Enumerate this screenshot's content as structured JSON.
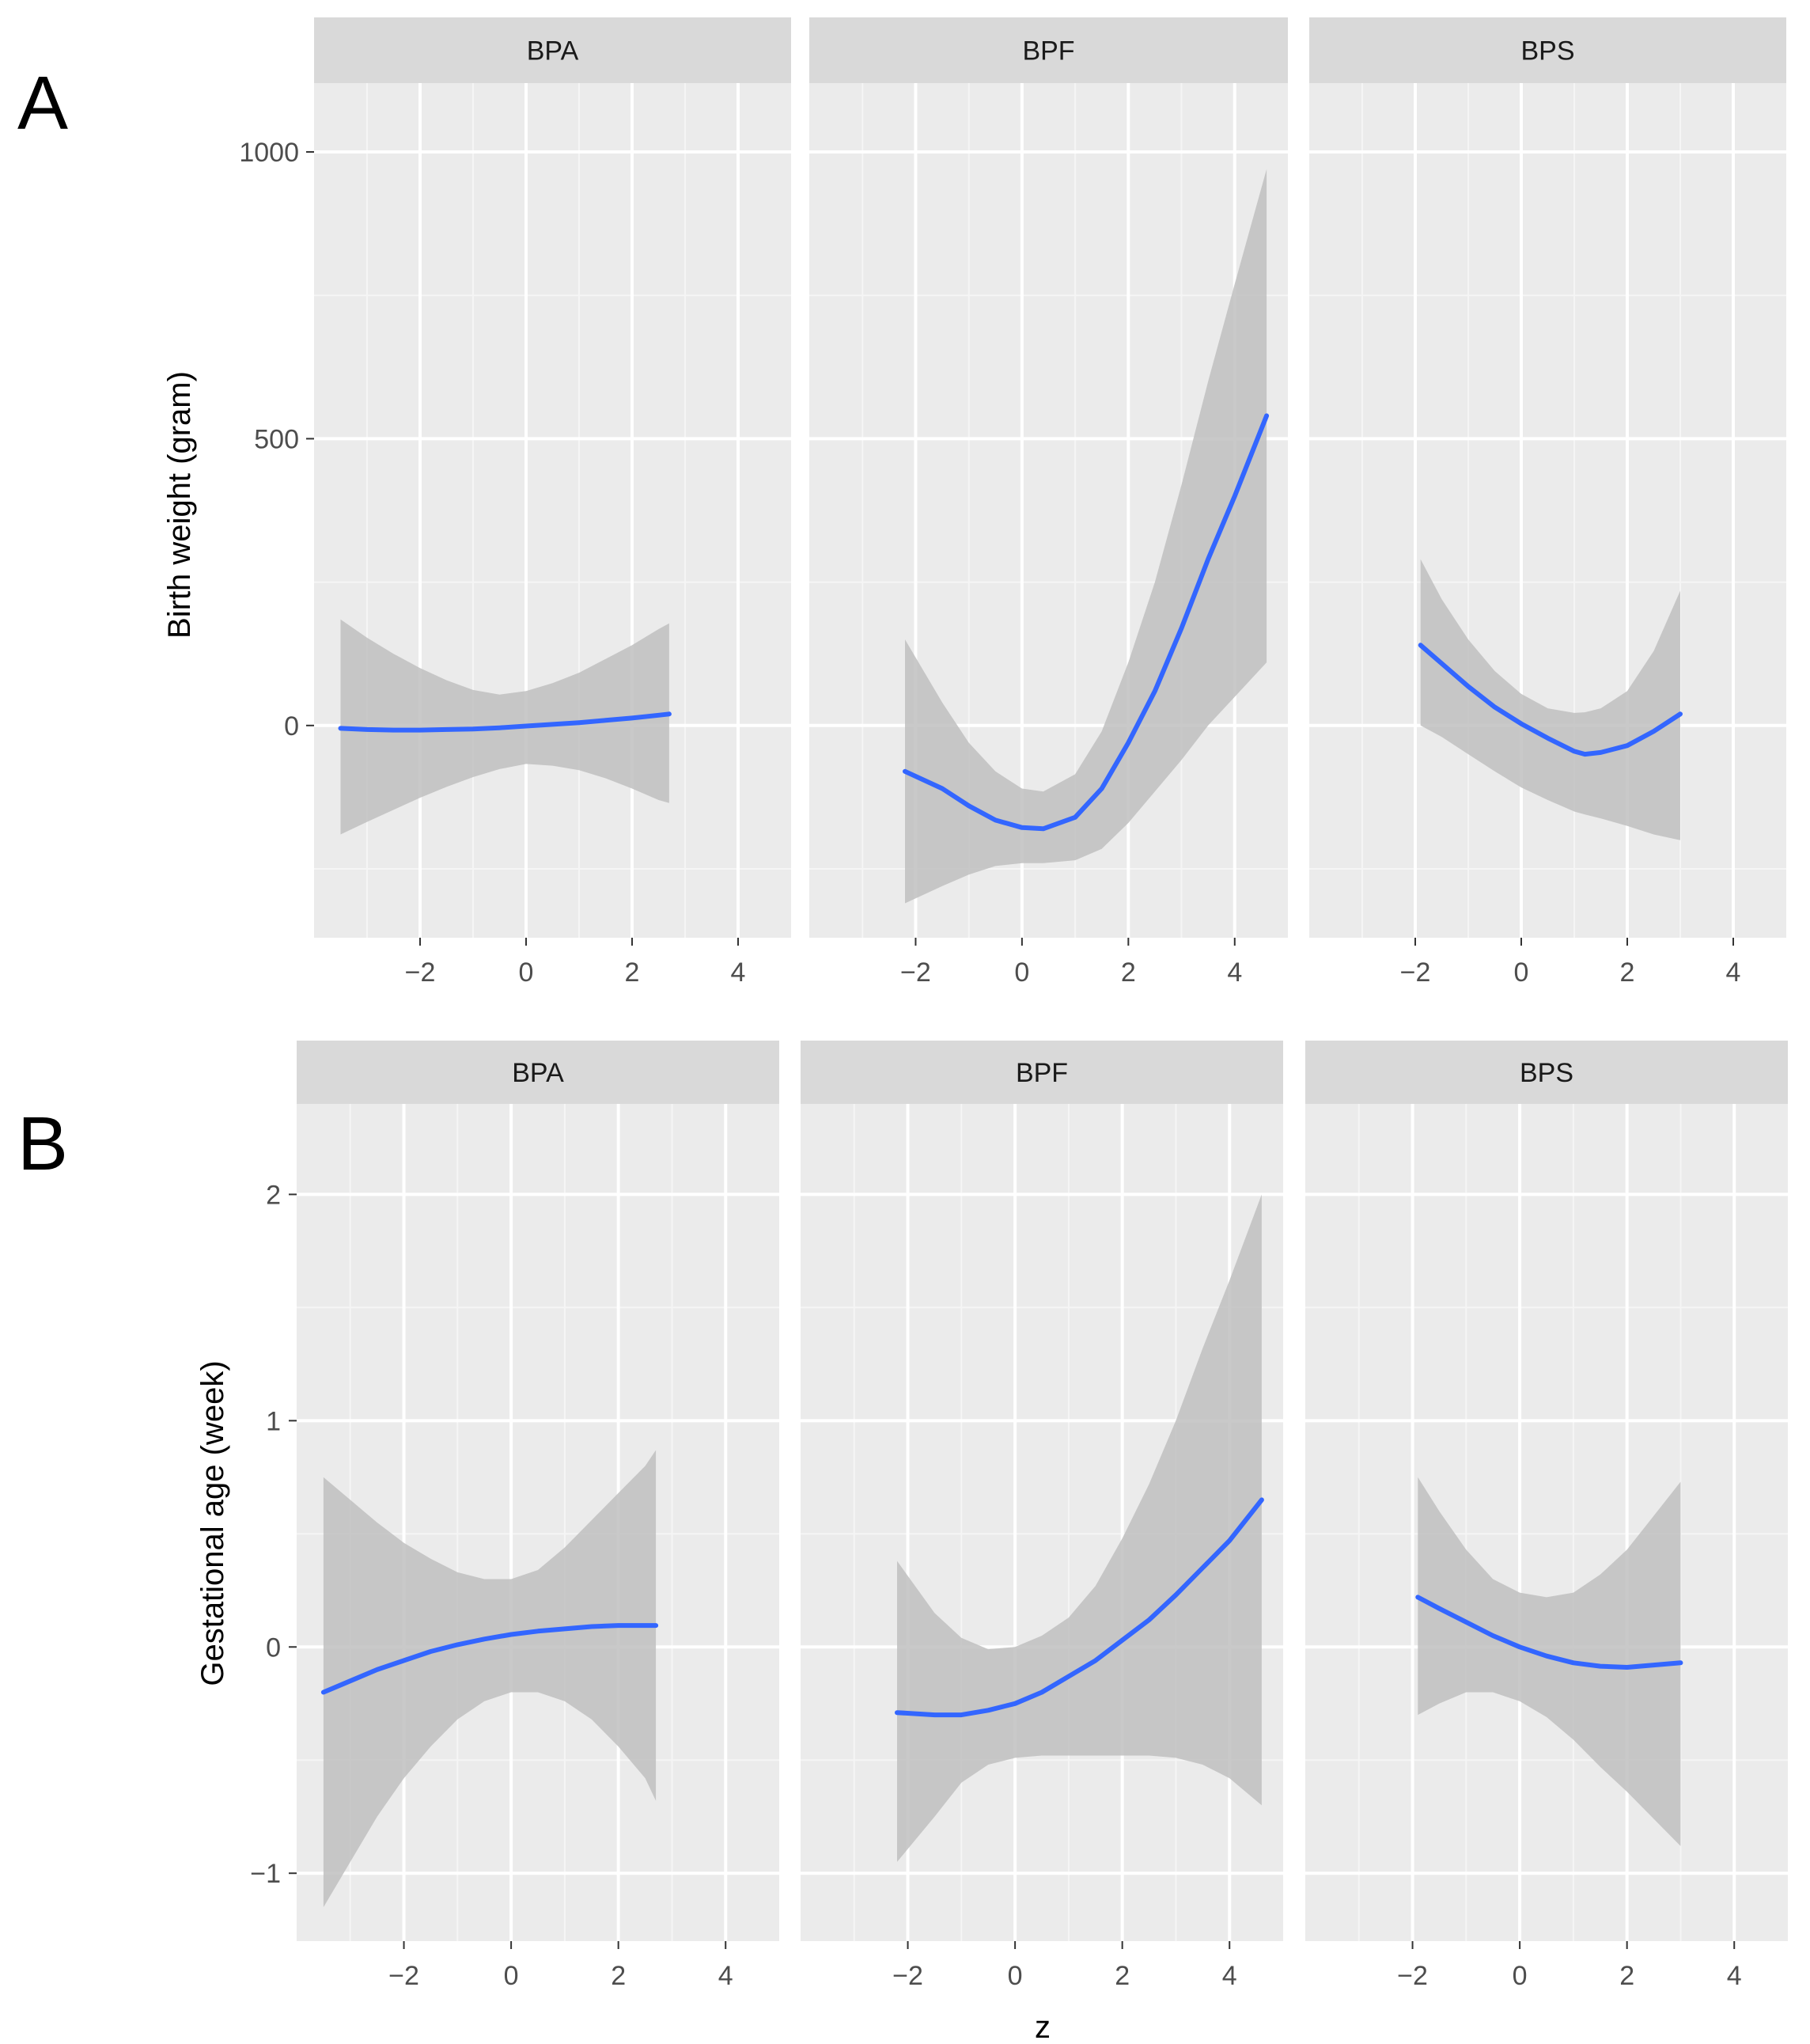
{
  "figure": {
    "panel_labels": [
      "A",
      "B"
    ],
    "x_axis_title": "z"
  },
  "colors": {
    "line": "#3366FF",
    "ribbon": "#BFBFBF",
    "panel_bg": "#EBEBEB",
    "strip_bg": "#D9D9D9",
    "grid_major": "#FFFFFF",
    "grid_minor": "#F5F5F5"
  },
  "chart_data": [
    {
      "type": "line",
      "panel": "A",
      "ylabel": "Birth weight (gram)",
      "xlim": [
        -4,
        5
      ],
      "ylim": [
        -370,
        1120
      ],
      "yticks": [
        0,
        500,
        1000
      ],
      "ytick_labels": [
        "0",
        "500",
        "1000"
      ],
      "xticks": [
        -2,
        0,
        2,
        4
      ],
      "xtick_labels": [
        "−2",
        "0",
        "2",
        "4"
      ],
      "facets": [
        {
          "label": "BPA",
          "x": [
            -3.5,
            -3,
            -2.5,
            -2,
            -1.5,
            -1,
            -0.5,
            0,
            0.5,
            1,
            1.5,
            2,
            2.5,
            2.7
          ],
          "y": [
            -5,
            -7,
            -8,
            -8,
            -7,
            -6,
            -4,
            -1,
            2,
            5,
            9,
            13,
            18,
            20
          ],
          "lower": [
            -190,
            -168,
            -147,
            -126,
            -107,
            -90,
            -76,
            -67,
            -70,
            -78,
            -92,
            -110,
            -130,
            -135
          ],
          "upper": [
            185,
            153,
            125,
            100,
            79,
            62,
            54,
            60,
            74,
            92,
            116,
            140,
            168,
            178
          ]
        },
        {
          "label": "BPF",
          "x": [
            -2.2,
            -1.5,
            -1,
            -0.5,
            0,
            0.4,
            1,
            1.5,
            2,
            2.5,
            3,
            3.5,
            4,
            4.6
          ],
          "y": [
            -80,
            -110,
            -140,
            -165,
            -178,
            -180,
            -160,
            -110,
            -30,
            60,
            170,
            290,
            400,
            540
          ],
          "lower": [
            -310,
            -280,
            -260,
            -245,
            -240,
            -240,
            -235,
            -215,
            -170,
            -115,
            -60,
            0,
            50,
            110
          ],
          "upper": [
            150,
            40,
            -30,
            -80,
            -110,
            -115,
            -85,
            -10,
            110,
            250,
            420,
            600,
            770,
            970
          ]
        },
        {
          "label": "BPS",
          "x": [
            -1.9,
            -1.5,
            -1,
            -0.5,
            0,
            0.5,
            1,
            1.2,
            1.5,
            2,
            2.5,
            3
          ],
          "y": [
            140,
            108,
            68,
            32,
            3,
            -22,
            -45,
            -50,
            -47,
            -35,
            -10,
            20
          ],
          "lower": [
            0,
            -20,
            -50,
            -80,
            -108,
            -130,
            -150,
            -155,
            -162,
            -175,
            -190,
            -200
          ],
          "upper": [
            290,
            220,
            150,
            95,
            55,
            30,
            22,
            23,
            30,
            60,
            130,
            235
          ]
        }
      ]
    },
    {
      "type": "line",
      "panel": "B",
      "ylabel": "Gestational age (week)",
      "xlim": [
        -4,
        5
      ],
      "ylim": [
        -1.3,
        2.4
      ],
      "yticks": [
        -1,
        0,
        1,
        2
      ],
      "ytick_labels": [
        "−1",
        "0",
        "1",
        "2"
      ],
      "xticks": [
        -2,
        0,
        2,
        4
      ],
      "xtick_labels": [
        "−2",
        "0",
        "2",
        "4"
      ],
      "facets": [
        {
          "label": "BPA",
          "x": [
            -3.5,
            -3,
            -2.5,
            -2,
            -1.5,
            -1,
            -0.5,
            0,
            0.5,
            1,
            1.5,
            2,
            2.5,
            2.7
          ],
          "y": [
            -0.2,
            -0.15,
            -0.1,
            -0.06,
            -0.02,
            0.01,
            0.035,
            0.055,
            0.07,
            0.08,
            0.09,
            0.095,
            0.095,
            0.095
          ],
          "lower": [
            -1.15,
            -0.95,
            -0.75,
            -0.58,
            -0.44,
            -0.32,
            -0.24,
            -0.2,
            -0.2,
            -0.24,
            -0.32,
            -0.44,
            -0.58,
            -0.68
          ],
          "upper": [
            0.75,
            0.65,
            0.55,
            0.46,
            0.39,
            0.33,
            0.3,
            0.3,
            0.34,
            0.44,
            0.56,
            0.68,
            0.8,
            0.87
          ]
        },
        {
          "label": "BPF",
          "x": [
            -2.2,
            -1.5,
            -1,
            -0.5,
            0,
            0.5,
            1,
            1.5,
            2,
            2.5,
            3,
            3.5,
            4,
            4.6
          ],
          "y": [
            -0.29,
            -0.3,
            -0.3,
            -0.28,
            -0.25,
            -0.2,
            -0.13,
            -0.06,
            0.03,
            0.12,
            0.23,
            0.35,
            0.47,
            0.65
          ],
          "lower": [
            -0.95,
            -0.75,
            -0.6,
            -0.52,
            -0.49,
            -0.48,
            -0.48,
            -0.48,
            -0.48,
            -0.48,
            -0.49,
            -0.52,
            -0.58,
            -0.7
          ],
          "upper": [
            0.38,
            0.15,
            0.04,
            -0.01,
            0.0,
            0.05,
            0.13,
            0.27,
            0.48,
            0.72,
            1.0,
            1.32,
            1.62,
            2.0
          ]
        },
        {
          "label": "BPS",
          "x": [
            -1.9,
            -1.5,
            -1,
            -0.5,
            0,
            0.5,
            1,
            1.5,
            2,
            2.5,
            3
          ],
          "y": [
            0.22,
            0.17,
            0.11,
            0.05,
            0.0,
            -0.04,
            -0.07,
            -0.085,
            -0.09,
            -0.08,
            -0.07
          ],
          "lower": [
            -0.3,
            -0.25,
            -0.2,
            -0.2,
            -0.24,
            -0.31,
            -0.41,
            -0.53,
            -0.64,
            -0.76,
            -0.88
          ],
          "upper": [
            0.75,
            0.6,
            0.43,
            0.3,
            0.24,
            0.22,
            0.24,
            0.32,
            0.43,
            0.58,
            0.73
          ]
        }
      ]
    }
  ]
}
